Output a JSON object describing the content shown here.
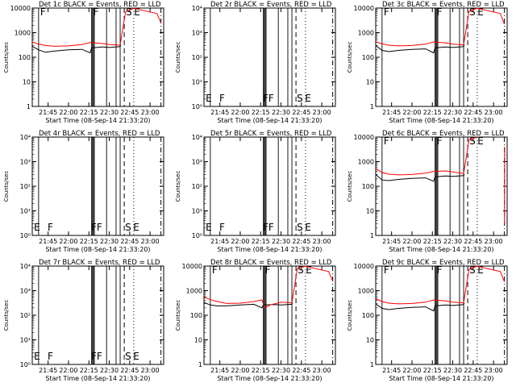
{
  "figure": {
    "x_tick_labels": [
      "21:45",
      "22:00",
      "22:15",
      "22:30",
      "22:45",
      "23:00"
    ],
    "x_axis_label": "Start Time (08-Sep-14 21:33:20)",
    "y_axis_label": "Counts/sec",
    "colors": {
      "events": "#000000",
      "lld": "#ff0000"
    }
  },
  "chart_data": [
    {
      "type": "line",
      "title": "Det 1c BLACK = Events, RED = LLD",
      "xlabel": "Start Time (08-Sep-14 21:33:20)",
      "ylabel": "Counts/sec",
      "yscale": "log",
      "ylim": [
        1,
        10000
      ],
      "y_tick_labels": [
        "1",
        "10",
        "100",
        "1000",
        "10000"
      ],
      "marker_letters": [
        "F",
        "F",
        "S",
        "E"
      ],
      "series": [
        {
          "name": "BLACK = Events",
          "color": "#000000",
          "x": [
            "21:33:20",
            "21:38",
            "21:43",
            "21:50",
            "22:00",
            "22:10",
            "22:16",
            "22:17",
            "22:25",
            "22:30",
            "22:38",
            "22:38:30"
          ],
          "y": [
            280,
            200,
            160,
            180,
            200,
            210,
            150,
            240,
            260,
            250,
            270,
            320
          ]
        },
        {
          "name": "RED = LLD",
          "color": "#ff0000",
          "x": [
            "21:33:20",
            "21:38",
            "21:43",
            "21:50",
            "22:00",
            "22:10",
            "22:16",
            "22:25",
            "22:30",
            "22:38",
            "22:39",
            "22:42",
            "22:48",
            "23:05",
            "23:08"
          ],
          "y": [
            420,
            340,
            300,
            280,
            290,
            330,
            400,
            360,
            330,
            310,
            700,
            7000,
            9800,
            6000,
            2500
          ]
        }
      ]
    },
    {
      "type": "line",
      "title": "Det 2r BLACK = Events, RED = LLD",
      "xlabel": "Start Time (08-Sep-14 21:33:20)",
      "ylabel": "Counts/sec",
      "yscale": "log",
      "ylim": [
        1,
        10000
      ],
      "y_tick_labels": [
        "10⁰",
        "10¹",
        "10²",
        "10³",
        "10⁴"
      ],
      "marker_letters": [
        "E",
        "F",
        "FF",
        "S",
        "E"
      ],
      "series": []
    },
    {
      "type": "line",
      "title": "Det 3c BLACK = Events, RED = LLD",
      "xlabel": "Start Time (08-Sep-14 21:33:20)",
      "ylabel": "Counts/sec",
      "yscale": "log",
      "ylim": [
        1,
        10000
      ],
      "y_tick_labels": [
        "1",
        "10",
        "100",
        "1000",
        "10000"
      ],
      "marker_letters": [
        "F",
        "F",
        "S",
        "E"
      ],
      "series": [
        {
          "name": "BLACK = Events",
          "color": "#000000",
          "x": [
            "21:33:20",
            "21:38",
            "21:43",
            "21:50",
            "22:00",
            "22:10",
            "22:16",
            "22:17",
            "22:25",
            "22:30",
            "22:38",
            "22:38:30"
          ],
          "y": [
            300,
            190,
            170,
            190,
            210,
            220,
            150,
            240,
            260,
            250,
            270,
            320
          ]
        },
        {
          "name": "RED = LLD",
          "color": "#ff0000",
          "x": [
            "21:33:20",
            "21:38",
            "21:43",
            "21:50",
            "22:00",
            "22:10",
            "22:16",
            "22:25",
            "22:30",
            "22:38",
            "22:39",
            "22:42",
            "22:48",
            "23:05",
            "23:08"
          ],
          "y": [
            430,
            350,
            310,
            290,
            300,
            340,
            420,
            380,
            340,
            320,
            700,
            7500,
            9800,
            6000,
            2200
          ]
        }
      ]
    },
    {
      "type": "line",
      "title": "Det 4r BLACK = Events, RED = LLD",
      "xlabel": "Start Time (08-Sep-14 21:33:20)",
      "ylabel": "Counts/sec",
      "yscale": "log",
      "ylim": [
        1,
        10000
      ],
      "y_tick_labels": [
        "10⁰",
        "10¹",
        "10²",
        "10³",
        "10⁴"
      ],
      "marker_letters": [
        "E",
        "F",
        "FF",
        "S",
        "E"
      ],
      "series": []
    },
    {
      "type": "line",
      "title": "Det 5r BLACK = Events, RED = LLD",
      "xlabel": "Start Time (08-Sep-14 21:33:20)",
      "ylabel": "Counts/sec",
      "yscale": "log",
      "ylim": [
        1,
        10000
      ],
      "y_tick_labels": [
        "10⁰",
        "10¹",
        "10²",
        "10³",
        "10⁴"
      ],
      "marker_letters": [
        "E",
        "F",
        "FF",
        "S",
        "E"
      ],
      "series": []
    },
    {
      "type": "line",
      "title": "Det 6c BLACK = Events, RED = LLD",
      "xlabel": "Start Time (08-Sep-14 21:33:20)",
      "ylabel": "Counts/sec",
      "yscale": "log",
      "ylim": [
        1,
        10000
      ],
      "y_tick_labels": [
        "1",
        "10",
        "100",
        "1000",
        "10000"
      ],
      "marker_letters": [
        "F",
        "F",
        "S",
        "E"
      ],
      "series": [
        {
          "name": "BLACK = Events",
          "color": "#000000",
          "x": [
            "21:33:20",
            "21:38",
            "21:43",
            "21:50",
            "22:00",
            "22:10",
            "22:16",
            "22:17",
            "22:25",
            "22:30",
            "22:38",
            "22:38:30"
          ],
          "y": [
            300,
            180,
            170,
            190,
            210,
            220,
            160,
            240,
            260,
            250,
            270,
            310
          ]
        },
        {
          "name": "RED = LLD",
          "color": "#ff0000",
          "x": [
            "21:33:20",
            "21:38",
            "21:43",
            "21:50",
            "22:00",
            "22:10",
            "22:16",
            "22:25",
            "22:30",
            "22:38",
            "22:39",
            "22:42",
            "22:48"
          ],
          "y": [
            520,
            360,
            310,
            290,
            300,
            340,
            400,
            420,
            380,
            330,
            700,
            8000,
            9800
          ]
        },
        {
          "name": "",
          "color": "#ff0000",
          "x": [
            "23:08",
            "23:08:10"
          ],
          "y": [
            3,
            4000
          ]
        }
      ]
    },
    {
      "type": "line",
      "title": "Det 7r BLACK = Events, RED = LLD",
      "xlabel": "Start Time (08-Sep-14 21:33:20)",
      "ylabel": "Counts/sec",
      "yscale": "log",
      "ylim": [
        1,
        10000
      ],
      "y_tick_labels": [
        "10⁰",
        "10¹",
        "10²",
        "10³",
        "10⁴"
      ],
      "marker_letters": [
        "E",
        "F",
        "FF",
        "S",
        "E"
      ],
      "series": []
    },
    {
      "type": "line",
      "title": "Det 8r BLACK = Events, RED = LLD",
      "xlabel": "Start Time (08-Sep-14 21:33:20)",
      "ylabel": "Counts/sec",
      "yscale": "log",
      "ylim": [
        1,
        10000
      ],
      "y_tick_labels": [
        "1",
        "10",
        "100",
        "1000",
        "10000"
      ],
      "marker_letters": [
        "F",
        "F",
        "S",
        "E"
      ],
      "series": [
        {
          "name": "BLACK = Events",
          "color": "#000000",
          "x": [
            "21:33:20",
            "21:38",
            "21:43",
            "21:50",
            "22:00",
            "22:10",
            "22:16",
            "22:17",
            "22:25",
            "22:30",
            "22:38",
            "22:38:30"
          ],
          "y": [
            330,
            260,
            240,
            240,
            260,
            280,
            200,
            260,
            270,
            260,
            280,
            320
          ]
        },
        {
          "name": "RED = LLD",
          "color": "#ff0000",
          "x": [
            "21:33:20",
            "21:38",
            "21:43",
            "21:50",
            "22:00",
            "22:10",
            "22:16",
            "22:18",
            "22:22",
            "22:30",
            "22:38",
            "22:39",
            "22:42",
            "22:48",
            "23:05",
            "23:08"
          ],
          "y": [
            560,
            430,
            360,
            300,
            310,
            360,
            420,
            200,
            260,
            340,
            320,
            700,
            8000,
            9800,
            6000,
            2500
          ]
        }
      ]
    },
    {
      "type": "line",
      "title": "Det 9c BLACK = Events, RED = LLD",
      "xlabel": "Start Time (08-Sep-14 21:33:20)",
      "ylabel": "Counts/sec",
      "yscale": "log",
      "ylim": [
        1,
        10000
      ],
      "y_tick_labels": [
        "1",
        "10",
        "100",
        "1000",
        "10000"
      ],
      "marker_letters": [
        "F",
        "F",
        "S",
        "E"
      ],
      "series": [
        {
          "name": "BLACK = Events",
          "color": "#000000",
          "x": [
            "21:33:20",
            "21:38",
            "21:43",
            "21:50",
            "22:00",
            "22:10",
            "22:16",
            "22:17",
            "22:25",
            "22:30",
            "22:38",
            "22:38:30"
          ],
          "y": [
            290,
            190,
            170,
            190,
            210,
            220,
            150,
            240,
            260,
            250,
            270,
            310
          ]
        },
        {
          "name": "RED = LLD",
          "color": "#ff0000",
          "x": [
            "21:33:20",
            "21:38",
            "21:43",
            "21:50",
            "22:00",
            "22:10",
            "22:16",
            "22:25",
            "22:30",
            "22:38",
            "22:39",
            "22:42",
            "22:48",
            "23:05",
            "23:08"
          ],
          "y": [
            470,
            360,
            310,
            290,
            300,
            340,
            420,
            380,
            340,
            320,
            700,
            7500,
            9800,
            6000,
            2300
          ]
        }
      ]
    }
  ]
}
